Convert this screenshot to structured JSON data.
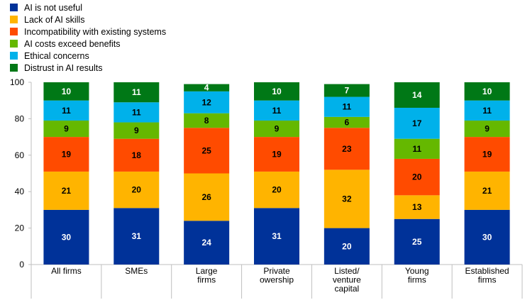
{
  "chart_data": {
    "type": "bar",
    "stacked": true,
    "title": "",
    "xlabel": "",
    "ylabel": "",
    "ylim": [
      0,
      100
    ],
    "yticks": [
      0,
      20,
      40,
      60,
      80,
      100
    ],
    "grid": false,
    "legend_position": "top-left",
    "categories": [
      [
        "All firms"
      ],
      [
        "SMEs"
      ],
      [
        "Large",
        "firms"
      ],
      [
        "Private",
        "owership"
      ],
      [
        "Listed/",
        "venture",
        "capital"
      ],
      [
        "Young",
        "firms"
      ],
      [
        "Established",
        "firms"
      ]
    ],
    "series": [
      {
        "name": "AI is not useful",
        "color": "#003299",
        "label_color": "#ffffff",
        "values": [
          30,
          31,
          24,
          31,
          20,
          25,
          30
        ]
      },
      {
        "name": "Lack of AI skills",
        "color": "#FFB400",
        "label_color": "#000000",
        "values": [
          21,
          20,
          26,
          20,
          32,
          13,
          21
        ]
      },
      {
        "name": "Incompatibility with existing systems",
        "color": "#FF4B00",
        "label_color": "#000000",
        "values": [
          19,
          18,
          25,
          19,
          23,
          20,
          19
        ]
      },
      {
        "name": "AI costs exceed benefits",
        "color": "#65B800",
        "label_color": "#000000",
        "values": [
          9,
          9,
          8,
          9,
          6,
          11,
          9
        ]
      },
      {
        "name": "Ethical concerns",
        "color": "#00B1EA",
        "label_color": "#000000",
        "values": [
          11,
          11,
          12,
          11,
          11,
          17,
          11
        ]
      },
      {
        "name": "Distrust in AI results",
        "color": "#007816",
        "label_color": "#ffffff",
        "values": [
          10,
          11,
          4,
          10,
          7,
          14,
          10
        ]
      }
    ]
  }
}
